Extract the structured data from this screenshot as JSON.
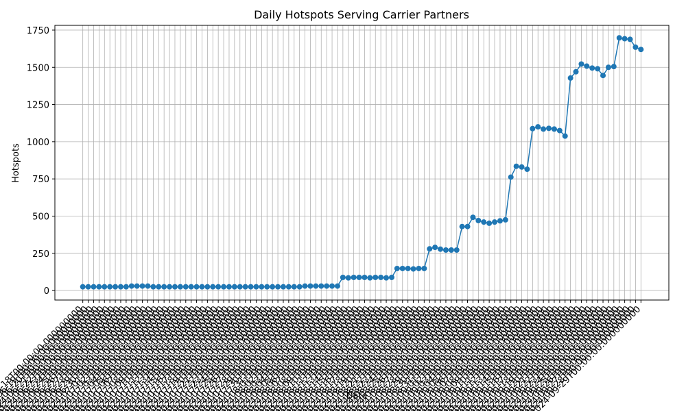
{
  "chart_data": {
    "type": "line",
    "title": "Daily Hotspots Serving Carrier Partners",
    "x_label": "Date",
    "y_label": "Hotspots",
    "categories": [
      "2024-06-18T00:00:00.000000000",
      "2024-06-19T00:00:00.000000000",
      "2024-06-20T00:00:00.000000000",
      "2024-06-21T00:00:00.000000000",
      "2024-06-22T00:00:00.000000000",
      "2024-06-23T00:00:00.000000000",
      "2024-06-24T00:00:00.000000000",
      "2024-06-25T00:00:00.000000000",
      "2024-06-26T00:00:00.000000000",
      "2024-06-27T00:00:00.000000000",
      "2024-06-28T00:00:00.000000000",
      "2024-06-29T00:00:00.000000000",
      "2024-06-30T00:00:00.000000000",
      "2024-07-01T00:00:00.000000000",
      "2024-07-02T00:00:00.000000000",
      "2024-07-03T00:00:00.000000000",
      "2024-07-04T00:00:00.000000000",
      "2024-07-05T00:00:00.000000000",
      "2024-07-06T00:00:00.000000000",
      "2024-07-07T00:00:00.000000000",
      "2024-07-08T00:00:00.000000000",
      "2024-07-09T00:00:00.000000000",
      "2024-07-10T00:00:00.000000000",
      "2024-07-11T00:00:00.000000000",
      "2024-07-12T00:00:00.000000000",
      "2024-07-13T00:00:00.000000000",
      "2024-07-14T00:00:00.000000000",
      "2024-07-15T00:00:00.000000000",
      "2024-07-16T00:00:00.000000000",
      "2024-07-17T00:00:00.000000000",
      "2024-07-18T00:00:00.000000000",
      "2024-07-19T00:00:00.000000000",
      "2024-07-20T00:00:00.000000000",
      "2024-07-21T00:00:00.000000000",
      "2024-07-22T00:00:00.000000000",
      "2024-07-23T00:00:00.000000000",
      "2024-07-24T00:00:00.000000000",
      "2024-07-25T00:00:00.000000000",
      "2024-07-26T00:00:00.000000000",
      "2024-07-27T00:00:00.000000000",
      "2024-07-28T00:00:00.000000000",
      "2024-07-29T00:00:00.000000000",
      "2024-07-30T00:00:00.000000000",
      "2024-07-31T00:00:00.000000000",
      "2024-08-01T00:00:00.000000000",
      "2024-08-02T00:00:00.000000000",
      "2024-08-03T00:00:00.000000000",
      "2024-08-04T00:00:00.000000000",
      "2024-08-05T00:00:00.000000000",
      "2024-08-06T00:00:00.000000000",
      "2024-08-07T00:00:00.000000000",
      "2024-08-08T00:00:00.000000000",
      "2024-08-09T00:00:00.000000000",
      "2024-08-10T00:00:00.000000000",
      "2024-08-11T00:00:00.000000000",
      "2024-08-12T00:00:00.000000000",
      "2024-08-13T00:00:00.000000000",
      "2024-08-14T00:00:00.000000000",
      "2024-08-15T00:00:00.000000000",
      "2024-08-16T00:00:00.000000000",
      "2024-08-17T00:00:00.000000000",
      "2024-08-18T00:00:00.000000000",
      "2024-08-19T00:00:00.000000000",
      "2024-08-20T00:00:00.000000000",
      "2024-08-21T00:00:00.000000000",
      "2024-08-22T00:00:00.000000000",
      "2024-08-23T00:00:00.000000000",
      "2024-08-24T00:00:00.000000000",
      "2024-08-25T00:00:00.000000000",
      "2024-08-26T00:00:00.000000000",
      "2024-08-27T00:00:00.000000000",
      "2024-08-28T00:00:00.000000000",
      "2024-08-29T00:00:00.000000000",
      "2024-08-30T00:00:00.000000000",
      "2024-08-31T00:00:00.000000000",
      "2024-09-01T00:00:00.000000000",
      "2024-09-02T00:00:00.000000000",
      "2024-09-03T00:00:00.000000000",
      "2024-09-04T00:00:00.000000000",
      "2024-09-05T00:00:00.000000000",
      "2024-09-06T00:00:00.000000000",
      "2024-09-07T00:00:00.000000000",
      "2024-09-08T00:00:00.000000000",
      "2024-09-09T00:00:00.000000000",
      "2024-09-10T00:00:00.000000000",
      "2024-09-11T00:00:00.000000000",
      "2024-09-12T00:00:00.000000000",
      "2024-09-13T00:00:00.000000000",
      "2024-09-14T00:00:00.000000000",
      "2024-09-15T00:00:00.000000000",
      "2024-09-16T00:00:00.000000000",
      "2024-09-17T00:00:00.000000000",
      "2024-09-18T00:00:00.000000000",
      "2024-09-19T00:00:00.000000000",
      "2024-09-20T00:00:00.000000000",
      "2024-09-21T00:00:00.000000000",
      "2024-09-22T00:00:00.000000000",
      "2024-09-23T00:00:00.000000000",
      "2024-09-24T00:00:00.000000000",
      "2024-09-25T00:00:00.000000000",
      "2024-09-26T00:00:00.000000000",
      "2024-09-27T00:00:00.000000000",
      "2024-09-28T00:00:00.000000000",
      "2024-09-29T00:00:00.000000000"
    ],
    "values": [
      25,
      25,
      25,
      25,
      25,
      25,
      25,
      25,
      25,
      30,
      30,
      30,
      30,
      25,
      25,
      25,
      25,
      25,
      25,
      25,
      25,
      25,
      25,
      25,
      25,
      25,
      25,
      25,
      25,
      25,
      25,
      25,
      25,
      25,
      25,
      25,
      25,
      25,
      25,
      25,
      25,
      30,
      30,
      30,
      30,
      30,
      30,
      30,
      88,
      85,
      88,
      88,
      88,
      85,
      88,
      88,
      85,
      88,
      148,
      148,
      148,
      145,
      148,
      148,
      280,
      290,
      278,
      272,
      272,
      272,
      430,
      430,
      492,
      470,
      460,
      452,
      460,
      468,
      475,
      762,
      835,
      830,
      815,
      1088,
      1100,
      1085,
      1090,
      1085,
      1075,
      1038,
      1428,
      1470,
      1522,
      1508,
      1495,
      1490,
      1445,
      1500,
      1505,
      1698,
      1692,
      1688,
      1635,
      1620
    ],
    "color": "#1f77b4",
    "ylim": [
      -64,
      1782
    ],
    "yticks": [
      0,
      250,
      500,
      750,
      1000,
      1250,
      1500,
      1750
    ],
    "grid": true
  }
}
